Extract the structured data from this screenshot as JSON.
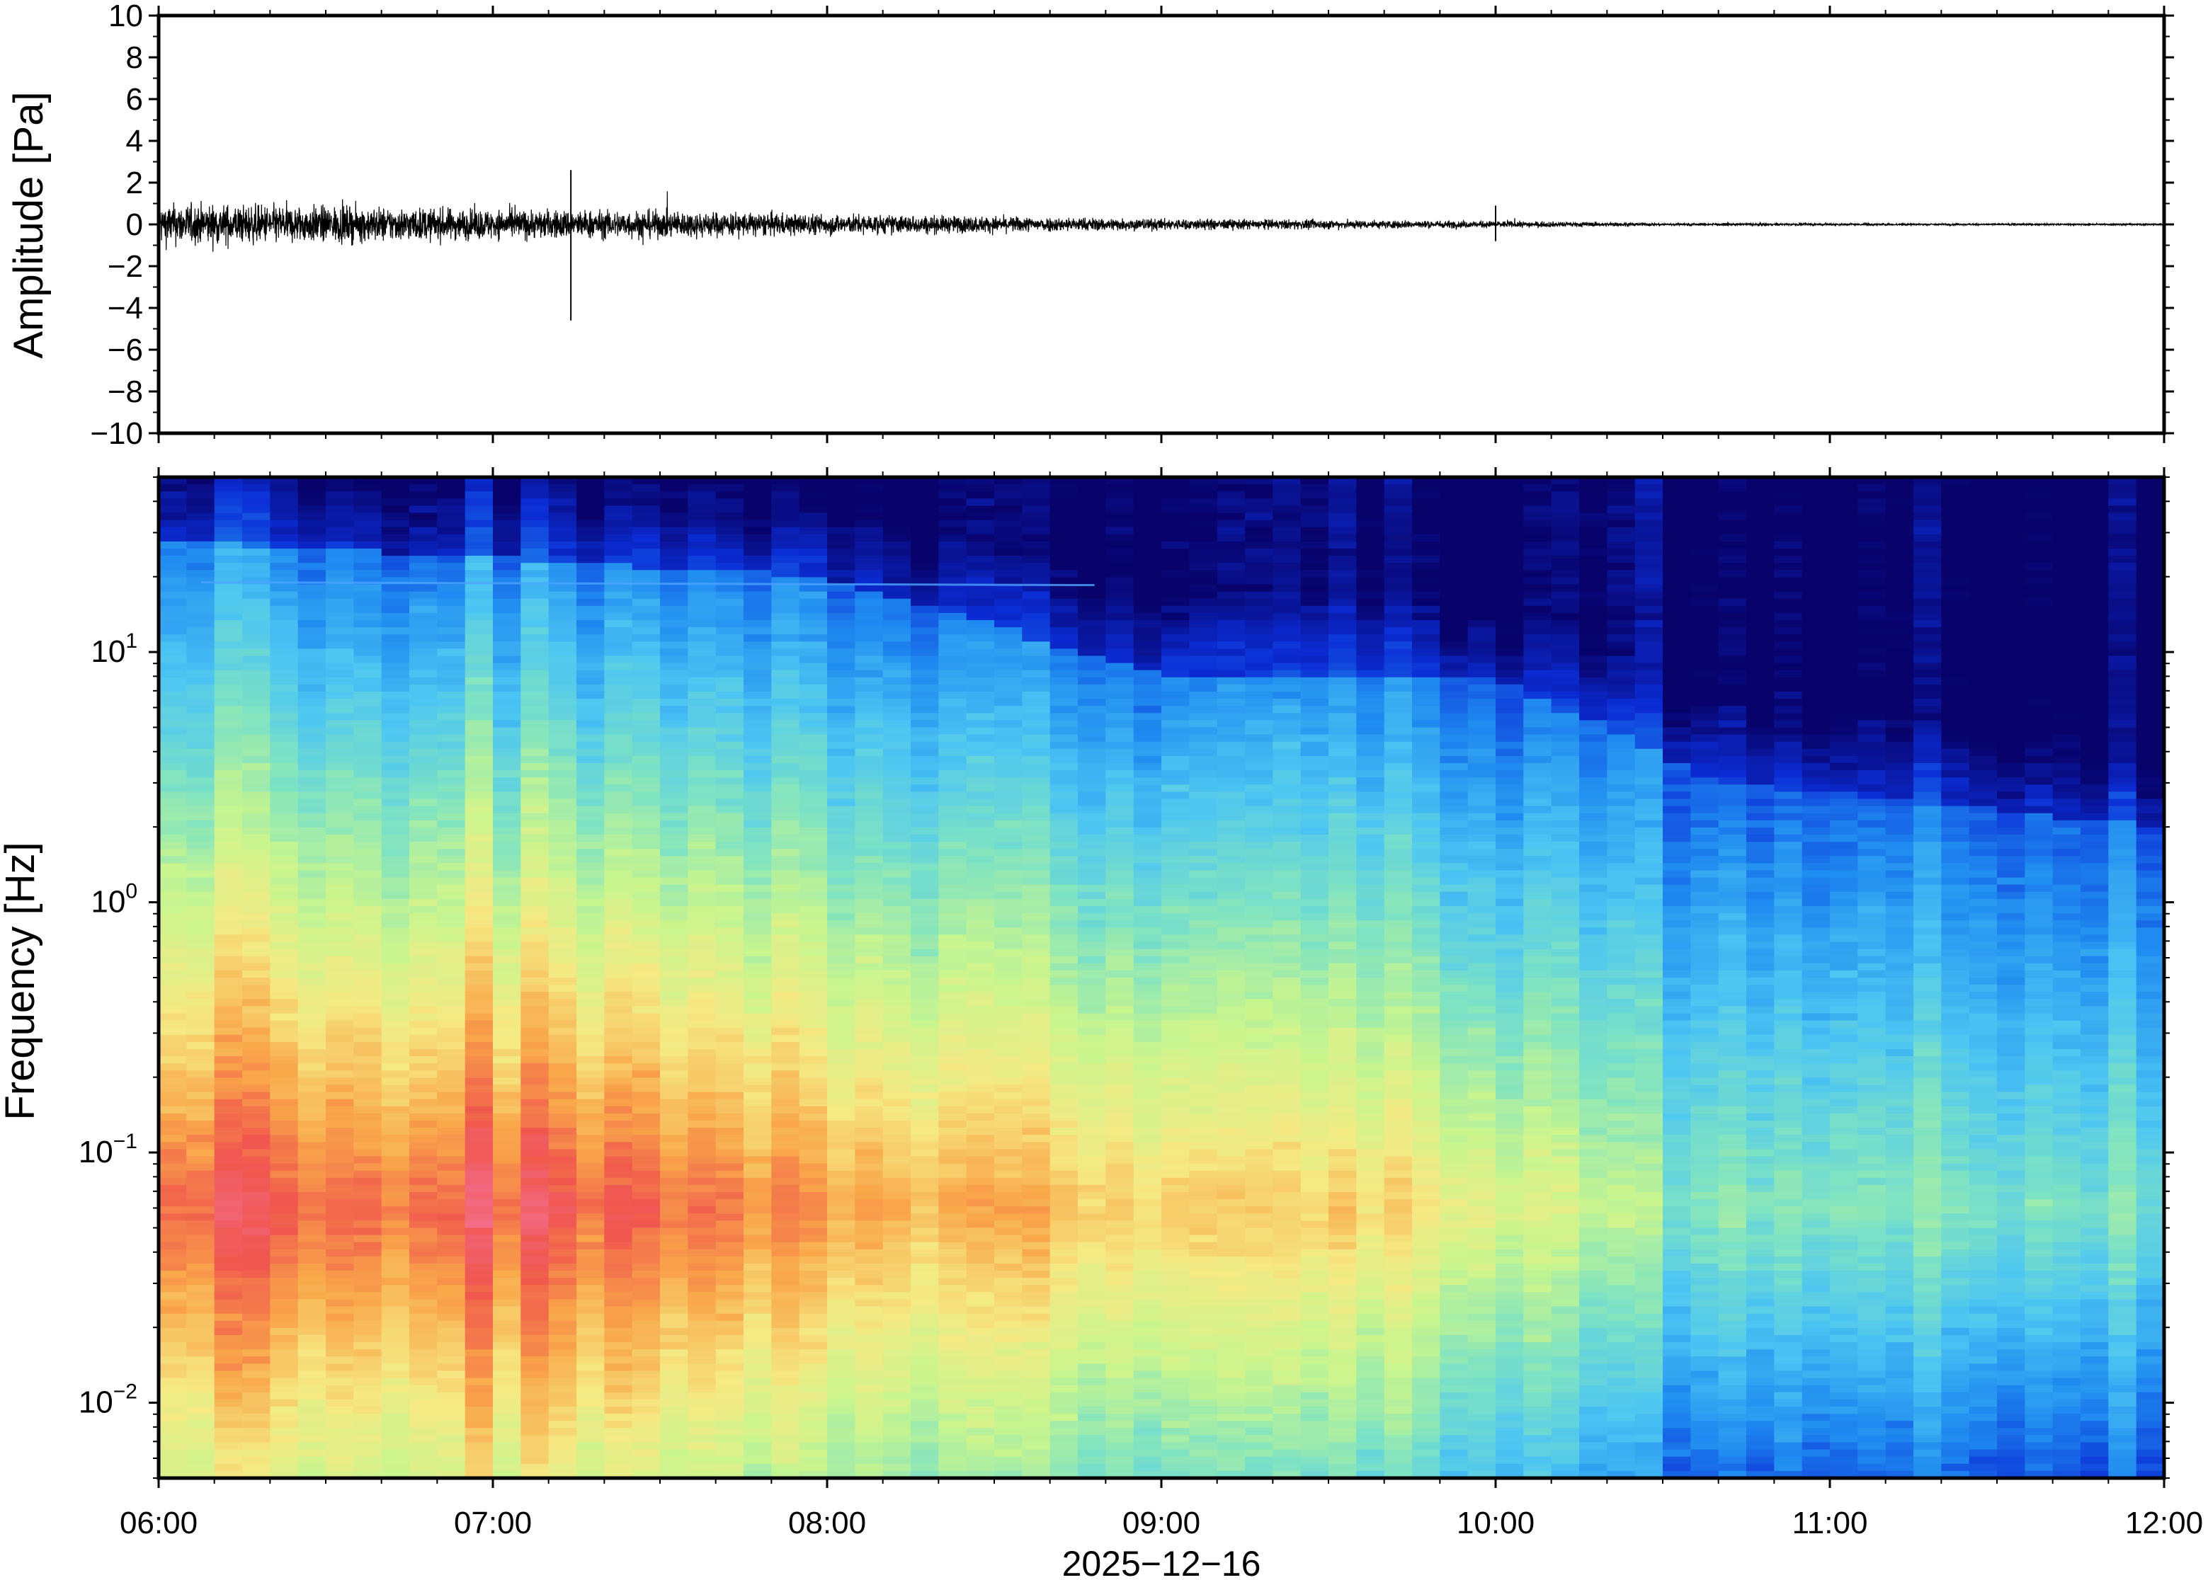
{
  "chart_data": [
    {
      "type": "line",
      "ylabel": "Amplitude [Pa]",
      "ylim": [
        -10,
        10
      ],
      "yticks": [
        10,
        8,
        6,
        4,
        2,
        0,
        -2,
        -4,
        -6,
        -8,
        -10
      ],
      "ytick_labels": [
        "10",
        "8",
        "6",
        "4",
        "2",
        "0",
        "−2",
        "−4",
        "−6",
        "−8",
        "−10"
      ],
      "x_range": [
        "06:00",
        "12:00"
      ],
      "envelope": {
        "times_h": [
          6.0,
          6.5,
          7.0,
          7.5,
          8.0,
          8.5,
          9.0,
          9.5,
          10.0,
          10.5,
          11.0,
          11.5,
          12.0
        ],
        "amplitude_pa": [
          0.9,
          0.8,
          0.65,
          0.6,
          0.45,
          0.35,
          0.25,
          0.2,
          0.15,
          0.06,
          0.05,
          0.04,
          0.04
        ]
      },
      "spikes": [
        {
          "time": "07:14",
          "max": 2.6,
          "min": -4.6
        },
        {
          "time": "10:00",
          "max": 0.9,
          "min": -0.8
        }
      ]
    },
    {
      "type": "heatmap",
      "ylabel": "Frequency [Hz]",
      "y_scale": "log",
      "ylim": [
        0.005,
        50
      ],
      "yticks": [
        {
          "base": "10",
          "exp": "1"
        },
        {
          "base": "10",
          "exp": "0"
        },
        {
          "base": "10",
          "exp": "−1"
        },
        {
          "base": "10",
          "exp": "−2"
        }
      ],
      "xlabel": "2025−12−16",
      "xtick_labels": [
        "06:00",
        "07:00",
        "08:00",
        "09:00",
        "10:00",
        "11:00",
        "12:00"
      ],
      "colormap": [
        "#08036b",
        "#0b2dd6",
        "#1f8bf0",
        "#4dc6f2",
        "#7fe3c2",
        "#c9f58e",
        "#f5e983",
        "#f9a84a",
        "#f0564d",
        "#f36e8e"
      ],
      "power_model": {
        "peak_freq_hz": 0.06,
        "profile": [
          {
            "time": "06:00",
            "peak_level": 0.88
          },
          {
            "time": "07:15",
            "peak_level": 0.9
          },
          {
            "time": "08:00",
            "peak_level": 0.82
          },
          {
            "time": "09:00",
            "peak_level": 0.72
          },
          {
            "time": "10:00",
            "peak_level": 0.66
          },
          {
            "time": "10:30",
            "peak_level": 0.48
          },
          {
            "time": "12:00",
            "peak_level": 0.45
          }
        ],
        "blue_top_boundary_hz": [
          {
            "time": "06:00",
            "freq": 28
          },
          {
            "time": "08:00",
            "freq": 20
          },
          {
            "time": "09:00",
            "freq": 8
          },
          {
            "time": "10:00",
            "freq": 8
          },
          {
            "time": "10:40",
            "freq": 3
          },
          {
            "time": "12:00",
            "freq": 2
          }
        ],
        "narrowband_line_hz": 19
      }
    }
  ]
}
